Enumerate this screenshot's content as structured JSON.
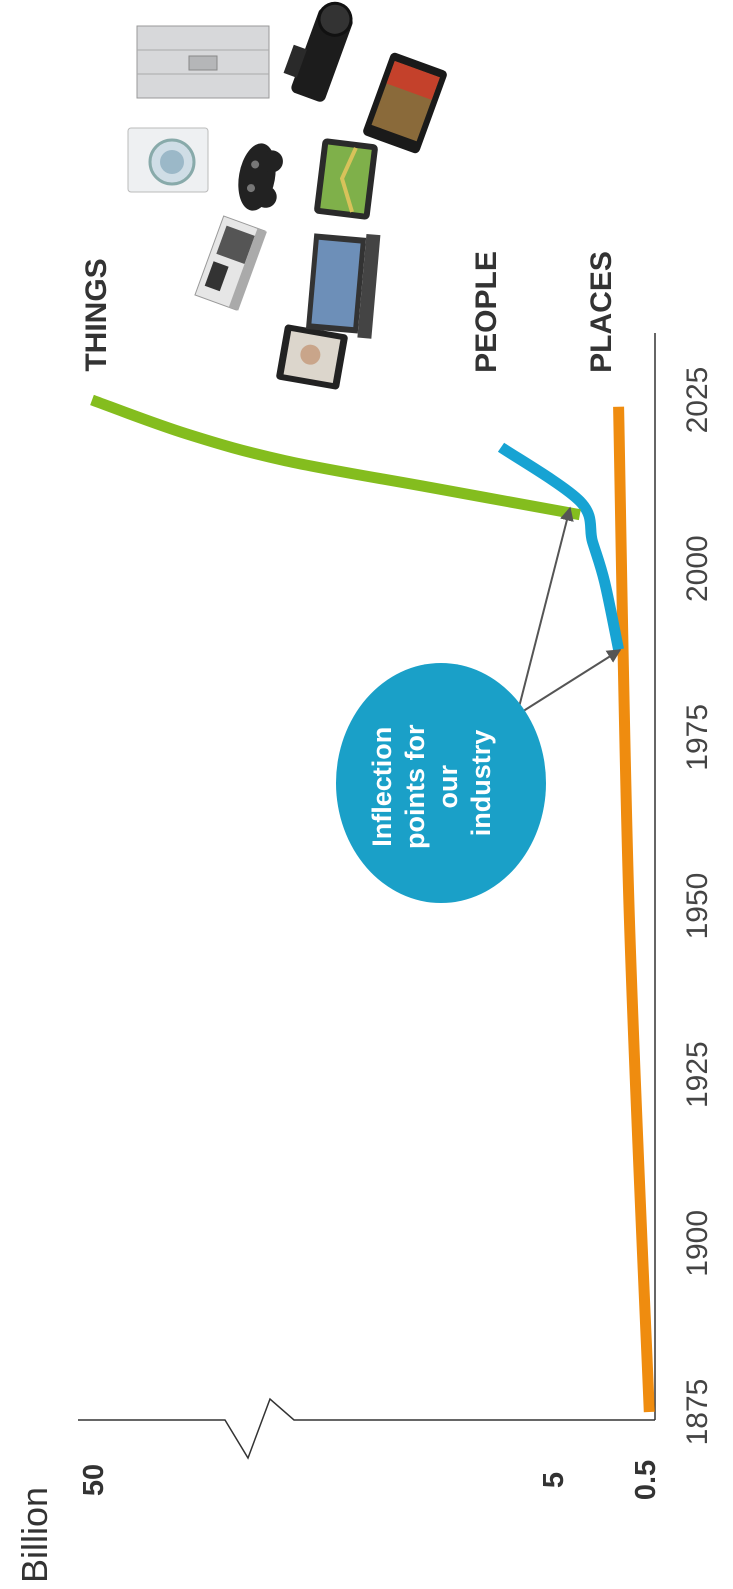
{
  "chart_data": {
    "type": "line",
    "ylabel": "Billion",
    "x_ticks": [
      "1875",
      "1900",
      "1925",
      "1950",
      "1975",
      "2000",
      "2025"
    ],
    "y_ticks": [
      "50",
      "5",
      "0.5"
    ],
    "xlim": [
      1875,
      2025
    ],
    "axis_break": "between 5 and 50",
    "series": [
      {
        "name": "THINGS",
        "color": "#84bd1e",
        "x": [
          2008,
          2012,
          2016,
          2020,
          2025
        ],
        "y": [
          4.6,
          10,
          20,
          32,
          50
        ]
      },
      {
        "name": "PEOPLE",
        "color": "#17a3d3",
        "x": [
          1988,
          1998,
          2004,
          2010,
          2018
        ],
        "y": [
          0.8,
          1.5,
          2.6,
          4.6,
          7.2
        ]
      },
      {
        "name": "PLACES",
        "color": "#ef8c0f",
        "x": [
          1875,
          1950,
          2024
        ],
        "y": [
          0.2,
          0.5,
          0.8
        ]
      }
    ],
    "annotation": {
      "lines": [
        "Inflection",
        "points for",
        "our",
        "industry"
      ],
      "color": "#1aa0c8",
      "points_to": [
        {
          "x": 1988,
          "y": 0.8
        },
        {
          "x": 2008,
          "y": 4.6
        }
      ]
    }
  },
  "device_images": [
    "picture-frame-icon",
    "cash-register-icon",
    "washing-machine-icon",
    "laptop-icon",
    "game-controller-icon",
    "gps-icon",
    "camcorder-icon",
    "smartphone-icon",
    "server-icon"
  ]
}
